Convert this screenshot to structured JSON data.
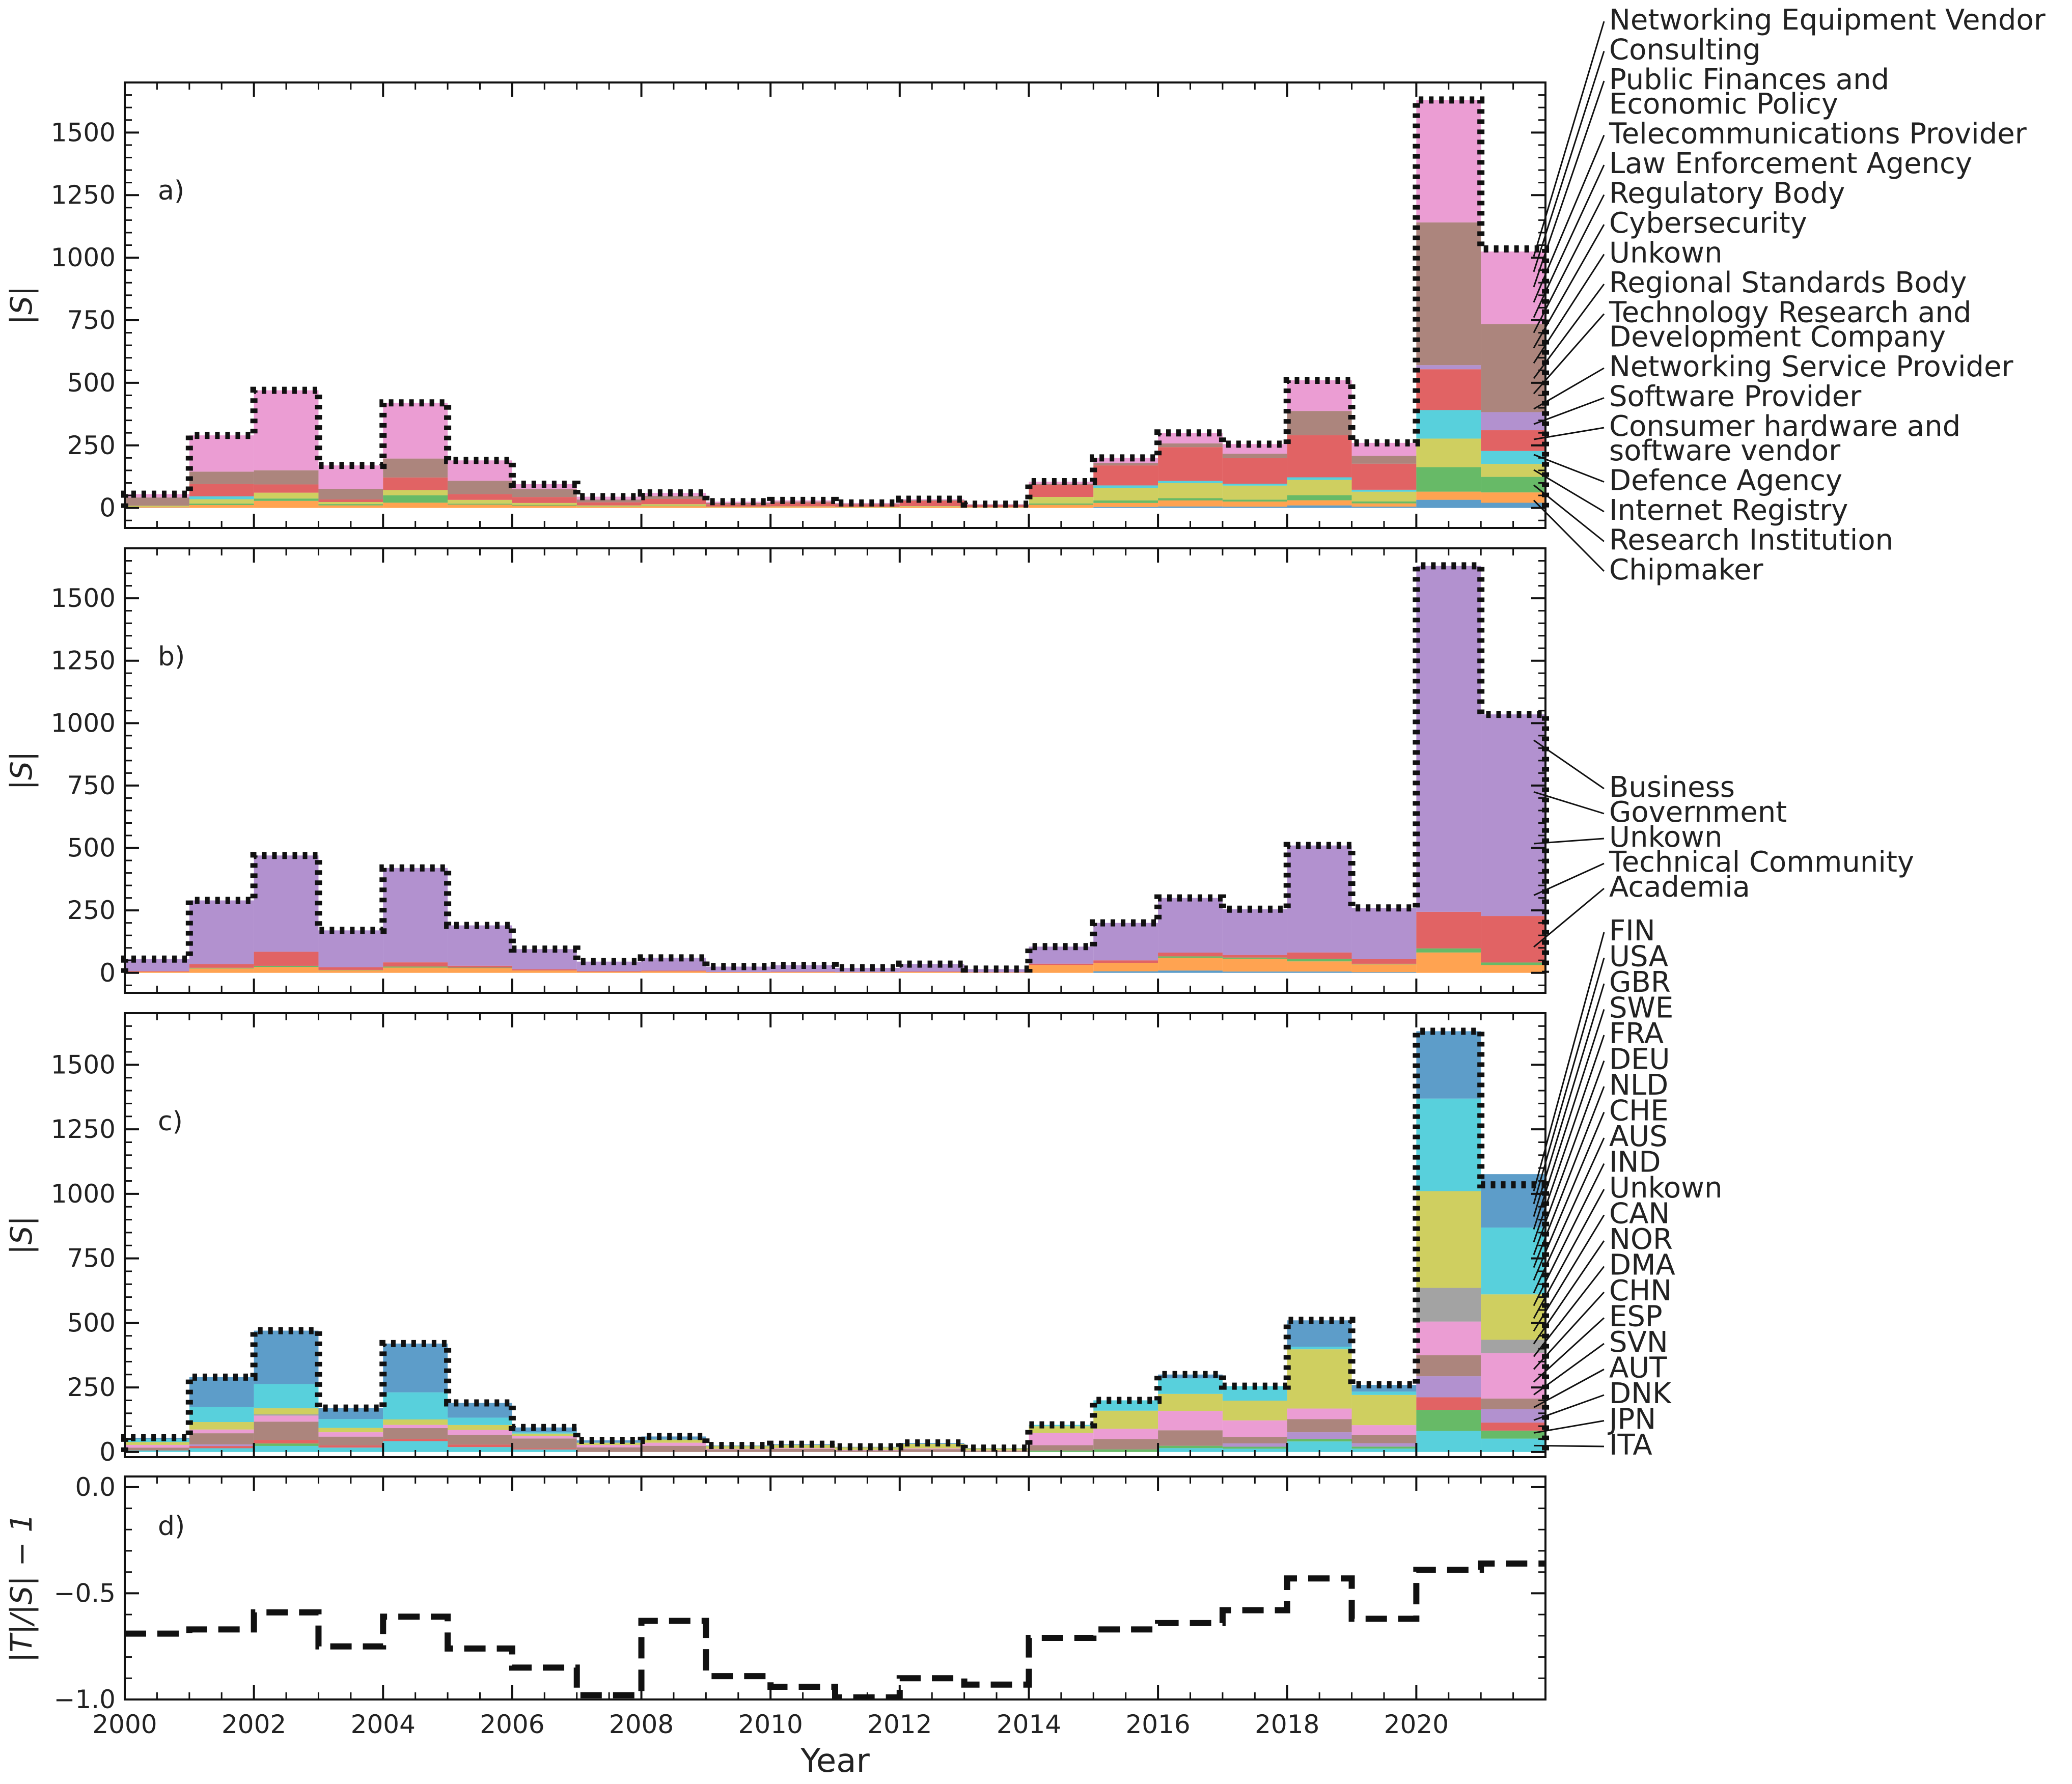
{
  "chart_data": {
    "type": "area",
    "x_label": "Year",
    "panels": [
      {
        "id": "a",
        "panel_label": "a)",
        "ylabel": "|S|",
        "ylim": [
          -80,
          1700
        ],
        "yticks": [
          0,
          250,
          500,
          750,
          1000,
          1250,
          1500
        ],
        "ytick_labels": [
          "0",
          "250",
          "500",
          "750",
          "1000",
          "1250",
          "1500"
        ],
        "legend": [
          "Networking Equipment Vendor",
          "Consulting",
          "Public Finances and Economic Policy",
          "Telecommunications Provider",
          "Law Enforcement Agency",
          "Regulatory Body",
          "Cybersecurity",
          "Unkown",
          "Regional Standards Body",
          "Technology Research and Development Company",
          "Networking Service Provider",
          "Software Provider",
          "Consumer hardware and software vendor",
          "Defence Agency",
          "Internet Registry",
          "Research Institution",
          "Chipmaker"
        ],
        "legend_lines": [
          [
            "Networking Equipment Vendor"
          ],
          [
            "Consulting"
          ],
          [
            "Public Finances and",
            " Economic Policy"
          ],
          [
            "Telecommunications Provider"
          ],
          [
            "Law Enforcement Agency"
          ],
          [
            "Regulatory Body"
          ],
          [
            "Cybersecurity"
          ],
          [
            "Unkown"
          ],
          [
            "Regional Standards Body"
          ],
          [
            "Technology Research and",
            " Development Company"
          ],
          [
            "Networking Service Provider"
          ],
          [
            "Software Provider"
          ],
          [
            "Consumer hardware and",
            " software vendor"
          ],
          [
            "Defence Agency"
          ],
          [
            "Internet Registry"
          ],
          [
            "Research Institution"
          ],
          [
            "Chipmaker"
          ]
        ],
        "totals": [
          55,
          290,
          470,
          170,
          420,
          190,
          95,
          45,
          60,
          25,
          30,
          20,
          35,
          15,
          105,
          200,
          300,
          255,
          510,
          260,
          1630,
          1035
        ],
        "stack_colors": [
          "#1f77b4",
          "#ff7f0e",
          "#2ca02c",
          "#bcbd22",
          "#17becf",
          "#d62728",
          "#9467bd",
          "#8c564b",
          "#e377c2"
        ],
        "stack_shares": [
          [
            0.02,
            0.06,
            0.0,
            0.08,
            0.0,
            0.0,
            0.0,
            0.6,
            0.24
          ],
          [
            0.0,
            0.04,
            0.02,
            0.06,
            0.04,
            0.17,
            0.0,
            0.17,
            0.5
          ],
          [
            0.0,
            0.06,
            0.02,
            0.05,
            0.0,
            0.07,
            0.0,
            0.12,
            0.68
          ],
          [
            0.0,
            0.06,
            0.03,
            0.05,
            0.0,
            0.06,
            0.0,
            0.25,
            0.55
          ],
          [
            0.0,
            0.05,
            0.07,
            0.05,
            0.0,
            0.12,
            0.0,
            0.18,
            0.53
          ],
          [
            0.0,
            0.07,
            0.02,
            0.08,
            0.0,
            0.12,
            0.0,
            0.28,
            0.43
          ],
          [
            0.0,
            0.1,
            0.03,
            0.08,
            0.0,
            0.25,
            0.0,
            0.34,
            0.2
          ],
          [
            0.0,
            0.1,
            0.02,
            0.1,
            0.0,
            0.28,
            0.0,
            0.25,
            0.25
          ],
          [
            0.0,
            0.12,
            0.03,
            0.1,
            0.0,
            0.35,
            0.0,
            0.2,
            0.2
          ],
          [
            0.0,
            0.1,
            0.0,
            0.1,
            0.0,
            0.4,
            0.0,
            0.2,
            0.2
          ],
          [
            0.0,
            0.1,
            0.0,
            0.1,
            0.0,
            0.5,
            0.0,
            0.15,
            0.15
          ],
          [
            0.0,
            0.1,
            0.0,
            0.1,
            0.0,
            0.5,
            0.0,
            0.15,
            0.15
          ],
          [
            0.0,
            0.1,
            0.0,
            0.1,
            0.0,
            0.6,
            0.0,
            0.1,
            0.1
          ],
          [
            0.0,
            0.1,
            0.0,
            0.1,
            0.0,
            0.5,
            0.0,
            0.15,
            0.15
          ],
          [
            0.0,
            0.12,
            0.05,
            0.25,
            0.0,
            0.45,
            0.0,
            0.05,
            0.08
          ],
          [
            0.02,
            0.08,
            0.05,
            0.25,
            0.05,
            0.4,
            0.0,
            0.05,
            0.1
          ],
          [
            0.02,
            0.08,
            0.03,
            0.2,
            0.03,
            0.45,
            0.0,
            0.05,
            0.14
          ],
          [
            0.02,
            0.08,
            0.03,
            0.22,
            0.03,
            0.4,
            0.0,
            0.07,
            0.15
          ],
          [
            0.02,
            0.04,
            0.04,
            0.12,
            0.02,
            0.33,
            0.0,
            0.19,
            0.24
          ],
          [
            0.02,
            0.05,
            0.03,
            0.15,
            0.03,
            0.4,
            0.0,
            0.12,
            0.2
          ],
          [
            0.02,
            0.02,
            0.06,
            0.07,
            0.07,
            0.1,
            0.01,
            0.35,
            0.3
          ],
          [
            0.02,
            0.04,
            0.06,
            0.05,
            0.05,
            0.08,
            0.07,
            0.34,
            0.28
          ]
        ]
      },
      {
        "id": "b",
        "panel_label": "b)",
        "ylabel": "|S|",
        "ylim": [
          -80,
          1700
        ],
        "yticks": [
          0,
          250,
          500,
          750,
          1000,
          1250,
          1500
        ],
        "ytick_labels": [
          "0",
          "250",
          "500",
          "750",
          "1000",
          "1250",
          "1500"
        ],
        "legend": [
          "Business",
          "Government",
          "Unkown",
          "Technical Community",
          "Academia"
        ],
        "legend_lines": [
          [
            "Business"
          ],
          [
            "Government"
          ],
          [
            "Unkown"
          ],
          [
            "Technical Community"
          ],
          [
            "Academia"
          ]
        ],
        "totals": [
          55,
          290,
          470,
          170,
          420,
          190,
          95,
          45,
          60,
          25,
          30,
          20,
          35,
          15,
          105,
          200,
          300,
          255,
          510,
          260,
          1630,
          1035
        ],
        "stack_colors": [
          "#1f77b4",
          "#ff7f0e",
          "#2ca02c",
          "#d62728",
          "#9467bd"
        ],
        "stack_shares": [
          [
            0.0,
            0.08,
            0.0,
            0.05,
            0.87
          ],
          [
            0.0,
            0.06,
            0.01,
            0.05,
            0.88
          ],
          [
            0.0,
            0.05,
            0.01,
            0.12,
            0.82
          ],
          [
            0.0,
            0.06,
            0.01,
            0.06,
            0.87
          ],
          [
            0.0,
            0.05,
            0.01,
            0.04,
            0.9
          ],
          [
            0.0,
            0.1,
            0.01,
            0.04,
            0.85
          ],
          [
            0.0,
            0.1,
            0.0,
            0.05,
            0.85
          ],
          [
            0.0,
            0.1,
            0.0,
            0.05,
            0.85
          ],
          [
            0.0,
            0.1,
            0.0,
            0.05,
            0.85
          ],
          [
            0.0,
            0.1,
            0.0,
            0.05,
            0.85
          ],
          [
            0.0,
            0.1,
            0.0,
            0.05,
            0.85
          ],
          [
            0.0,
            0.1,
            0.0,
            0.05,
            0.85
          ],
          [
            0.0,
            0.1,
            0.0,
            0.05,
            0.85
          ],
          [
            0.0,
            0.1,
            0.0,
            0.05,
            0.85
          ],
          [
            0.0,
            0.3,
            0.0,
            0.05,
            0.65
          ],
          [
            0.03,
            0.17,
            0.0,
            0.05,
            0.75
          ],
          [
            0.03,
            0.17,
            0.02,
            0.05,
            0.73
          ],
          [
            0.02,
            0.2,
            0.02,
            0.04,
            0.72
          ],
          [
            0.01,
            0.08,
            0.02,
            0.05,
            0.84
          ],
          [
            0.01,
            0.12,
            0.01,
            0.07,
            0.79
          ],
          [
            0.0,
            0.05,
            0.01,
            0.09,
            0.85
          ],
          [
            0.0,
            0.03,
            0.01,
            0.18,
            0.78
          ]
        ]
      },
      {
        "id": "c",
        "panel_label": "c)",
        "ylabel": "|S|",
        "ylim": [
          -20,
          1700
        ],
        "yticks": [
          0,
          250,
          500,
          750,
          1000,
          1250,
          1500
        ],
        "ytick_labels": [
          "0",
          "250",
          "500",
          "750",
          "1000",
          "1250",
          "1500"
        ],
        "legend": [
          "FIN",
          "USA",
          "GBR",
          "SWE",
          "FRA",
          "DEU",
          "NLD",
          "CHE",
          "AUS",
          "IND",
          "Unkown",
          "CAN",
          "NOR",
          "DMA",
          "CHN",
          "ESP",
          "SVN",
          "AUT",
          "DNK",
          "JPN",
          "ITA"
        ],
        "legend_lines": [
          [
            "FIN"
          ],
          [
            "USA"
          ],
          [
            "GBR"
          ],
          [
            "SWE"
          ],
          [
            "FRA"
          ],
          [
            "DEU"
          ],
          [
            "NLD"
          ],
          [
            "CHE"
          ],
          [
            "AUS"
          ],
          [
            "IND"
          ],
          [
            "Unkown"
          ],
          [
            "CAN"
          ],
          [
            "NOR"
          ],
          [
            "DMA"
          ],
          [
            "CHN"
          ],
          [
            "ESP"
          ],
          [
            "SVN"
          ],
          [
            "AUT"
          ],
          [
            "DNK"
          ],
          [
            "JPN"
          ],
          [
            "ITA"
          ]
        ],
        "totals": [
          55,
          290,
          470,
          170,
          420,
          190,
          95,
          45,
          60,
          25,
          30,
          20,
          35,
          15,
          105,
          200,
          300,
          255,
          510,
          260,
          1630,
          1035
        ],
        "stack_colors": [
          "#17becf",
          "#2ca02c",
          "#d62728",
          "#9467bd",
          "#8c564b",
          "#e377c2",
          "#7f7f7f",
          "#bcbd22",
          "#17becf",
          "#1f77b4"
        ],
        "stack_shares": [
          [
            0.1,
            0.0,
            0.0,
            0.0,
            0.2,
            0.2,
            0.0,
            0.2,
            0.2,
            0.1
          ],
          [
            0.05,
            0.0,
            0.03,
            0.02,
            0.15,
            0.05,
            0.0,
            0.1,
            0.2,
            0.4
          ],
          [
            0.05,
            0.02,
            0.03,
            0.0,
            0.15,
            0.05,
            0.01,
            0.05,
            0.2,
            0.44
          ],
          [
            0.1,
            0.0,
            0.05,
            0.0,
            0.2,
            0.1,
            0.0,
            0.1,
            0.2,
            0.25
          ],
          [
            0.1,
            0.0,
            0.02,
            0.0,
            0.1,
            0.03,
            0.0,
            0.05,
            0.25,
            0.45
          ],
          [
            0.1,
            0.0,
            0.05,
            0.0,
            0.2,
            0.1,
            0.0,
            0.1,
            0.15,
            0.3
          ],
          [
            0.1,
            0.0,
            0.05,
            0.0,
            0.4,
            0.1,
            0.0,
            0.1,
            0.05,
            0.2
          ],
          [
            0.0,
            0.0,
            0.0,
            0.0,
            0.4,
            0.2,
            0.0,
            0.2,
            0.0,
            0.2
          ],
          [
            0.0,
            0.0,
            0.0,
            0.0,
            0.4,
            0.2,
            0.0,
            0.2,
            0.0,
            0.2
          ],
          [
            0.0,
            0.0,
            0.0,
            0.0,
            0.4,
            0.1,
            0.0,
            0.4,
            0.0,
            0.1
          ],
          [
            0.0,
            0.0,
            0.0,
            0.0,
            0.4,
            0.1,
            0.0,
            0.4,
            0.0,
            0.1
          ],
          [
            0.0,
            0.0,
            0.0,
            0.0,
            0.3,
            0.1,
            0.0,
            0.5,
            0.0,
            0.1
          ],
          [
            0.0,
            0.0,
            0.0,
            0.0,
            0.3,
            0.1,
            0.0,
            0.5,
            0.0,
            0.1
          ],
          [
            0.0,
            0.0,
            0.0,
            0.0,
            0.3,
            0.1,
            0.0,
            0.5,
            0.0,
            0.1
          ],
          [
            0.0,
            0.05,
            0.0,
            0.0,
            0.2,
            0.45,
            0.0,
            0.25,
            0.05,
            0.0
          ],
          [
            0.0,
            0.05,
            0.0,
            0.0,
            0.2,
            0.2,
            0.0,
            0.35,
            0.2,
            0.0
          ],
          [
            0.05,
            0.03,
            0.0,
            0.0,
            0.2,
            0.25,
            0.0,
            0.22,
            0.2,
            0.05
          ],
          [
            0.05,
            0.03,
            0.0,
            0.05,
            0.1,
            0.25,
            0.0,
            0.3,
            0.22,
            0.0
          ],
          [
            0.08,
            0.02,
            0.0,
            0.05,
            0.1,
            0.08,
            0.0,
            0.45,
            0.02,
            0.2
          ],
          [
            0.05,
            0.03,
            0.0,
            0.05,
            0.12,
            0.15,
            0.0,
            0.45,
            0.05,
            0.1
          ],
          [
            0.05,
            0.05,
            0.03,
            0.05,
            0.05,
            0.08,
            0.08,
            0.23,
            0.22,
            0.16
          ],
          [
            0.05,
            0.03,
            0.03,
            0.05,
            0.04,
            0.17,
            0.05,
            0.17,
            0.25,
            0.2
          ]
        ]
      },
      {
        "id": "d",
        "panel_label": "d)",
        "ylabel": "|T|/|S| − 1",
        "ylim": [
          -1.0,
          0.05
        ],
        "yticks": [
          -1.0,
          -0.5,
          0.0
        ],
        "ytick_labels": [
          "−1.0",
          "−0.5",
          "0.0"
        ],
        "series": [
          {
            "style": "dashed-black",
            "x": [
              2000,
              2001,
              2002,
              2003,
              2004,
              2005,
              2006,
              2007,
              2008,
              2009,
              2010,
              2011,
              2012,
              2013,
              2014,
              2015,
              2016,
              2017,
              2018,
              2019,
              2020,
              2021,
              2022
            ],
            "values": [
              -0.69,
              -0.67,
              -0.59,
              -0.75,
              -0.61,
              -0.76,
              -0.85,
              -0.98,
              -0.63,
              -0.89,
              -0.94,
              -0.99,
              -0.9,
              -0.93,
              -0.71,
              -0.67,
              -0.64,
              -0.58,
              -0.43,
              -0.62,
              -0.39,
              -0.36,
              -0.36
            ]
          }
        ]
      }
    ],
    "x_range": [
      2000,
      2022
    ],
    "xticks": [
      2000,
      2002,
      2004,
      2006,
      2008,
      2010,
      2012,
      2014,
      2016,
      2018,
      2020
    ],
    "xtick_labels": [
      "2000",
      "2002",
      "2004",
      "2006",
      "2008",
      "2010",
      "2012",
      "2014",
      "2016",
      "2018",
      "2020"
    ]
  }
}
